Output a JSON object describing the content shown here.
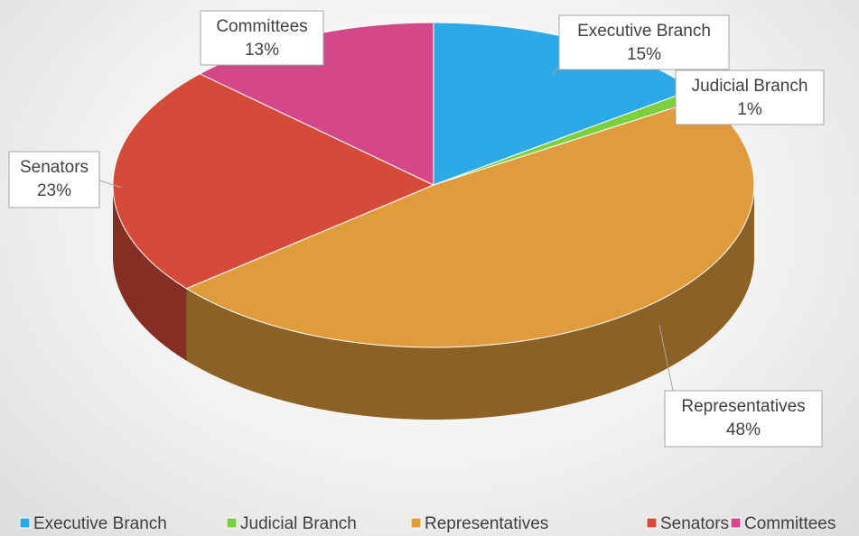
{
  "chart_data": {
    "type": "pie",
    "categories": [
      "Executive Branch",
      "Judicial Branch",
      "Representatives",
      "Senators",
      "Committees"
    ],
    "values": [
      15,
      1,
      48,
      23,
      13
    ],
    "value_labels": [
      "15%",
      "1%",
      "48%",
      "23%",
      "13%"
    ],
    "colors": [
      "#2ea9e8",
      "#7ccf3e",
      "#e09c3c",
      "#d64a3a",
      "#d4488a"
    ],
    "legend": "bottom"
  }
}
